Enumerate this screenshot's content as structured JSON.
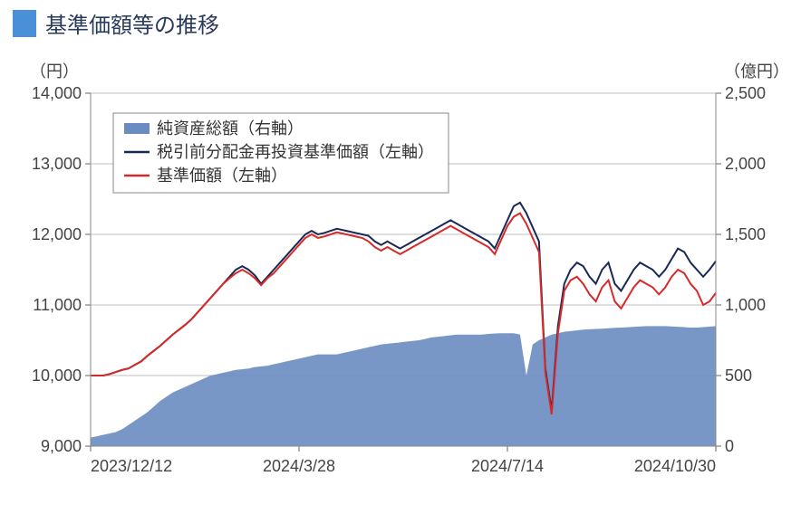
{
  "title": "基準価額等の推移",
  "chart": {
    "type": "combo-line-area",
    "left_axis_unit": "（円）",
    "right_axis_unit": "（億円）",
    "left_ylim": [
      9000,
      14000
    ],
    "left_ticks": [
      9000,
      10000,
      11000,
      12000,
      13000,
      14000
    ],
    "left_tick_labels": [
      "9,000",
      "10,000",
      "11,000",
      "12,000",
      "13,000",
      "14,000"
    ],
    "right_ylim": [
      0,
      2500
    ],
    "right_ticks": [
      0,
      500,
      1000,
      1500,
      2000,
      2500
    ],
    "right_tick_labels": [
      "0",
      "500",
      "1,000",
      "1,500",
      "2,000",
      "2,500"
    ],
    "x_dates": [
      "2023/12/12",
      "2024/3/28",
      "2024/7/14",
      "2024/10/30"
    ],
    "background_color": "#ffffff",
    "grid_color": "#bfbfbf",
    "plot_border_color": "#888888",
    "title_fontsize": 24,
    "tick_fontsize": 18,
    "legend": {
      "position": "top-left-inside",
      "items": [
        {
          "label": "純資産総額（右軸）",
          "type": "area",
          "color": "#6a8cc0"
        },
        {
          "label": "税引前分配金再投資基準価額（左軸）",
          "type": "line",
          "color": "#1a2855"
        },
        {
          "label": "基準価額（左軸）",
          "type": "line",
          "color": "#d62a2a"
        }
      ]
    },
    "series": {
      "net_assets": {
        "axis": "right",
        "type": "area",
        "color": "#6a8cc0",
        "fill_opacity": 0.9,
        "values": [
          60,
          70,
          80,
          90,
          100,
          120,
          150,
          180,
          210,
          240,
          280,
          320,
          350,
          380,
          400,
          420,
          440,
          460,
          480,
          500,
          510,
          520,
          530,
          540,
          545,
          550,
          560,
          565,
          570,
          580,
          590,
          600,
          610,
          620,
          630,
          640,
          650,
          650,
          650,
          650,
          660,
          670,
          680,
          690,
          700,
          710,
          720,
          725,
          730,
          735,
          740,
          745,
          750,
          760,
          770,
          775,
          780,
          785,
          790,
          790,
          790,
          790,
          790,
          795,
          798,
          800,
          800,
          800,
          790,
          500,
          720,
          750,
          770,
          790,
          800,
          810,
          815,
          820,
          825,
          828,
          830,
          832,
          835,
          838,
          840,
          842,
          845,
          848,
          850,
          850,
          850,
          850,
          848,
          845,
          843,
          840,
          840,
          843,
          847,
          850
        ]
      },
      "reinvest_nav": {
        "axis": "left",
        "type": "line",
        "color": "#1a2855",
        "line_width": 2,
        "values": [
          10000,
          10000,
          10000,
          10020,
          10050,
          10080,
          10100,
          10150,
          10200,
          10280,
          10350,
          10420,
          10500,
          10580,
          10650,
          10720,
          10800,
          10900,
          11000,
          11100,
          11200,
          11300,
          11400,
          11500,
          11550,
          11500,
          11420,
          11300,
          11400,
          11500,
          11600,
          11700,
          11800,
          11900,
          12000,
          12050,
          12000,
          12020,
          12050,
          12080,
          12060,
          12040,
          12020,
          12000,
          11980,
          11900,
          11850,
          11900,
          11850,
          11800,
          11850,
          11900,
          11950,
          12000,
          12050,
          12100,
          12150,
          12200,
          12150,
          12100,
          12050,
          12000,
          11950,
          11900,
          11800,
          12000,
          12200,
          12400,
          12450,
          12300,
          12100,
          11900,
          10100,
          9500,
          10700,
          11300,
          11500,
          11600,
          11550,
          11400,
          11300,
          11500,
          11600,
          11300,
          11200,
          11350,
          11500,
          11600,
          11550,
          11500,
          11400,
          11500,
          11650,
          11800,
          11750,
          11600,
          11500,
          11400,
          11500,
          11620
        ]
      },
      "nav": {
        "axis": "left",
        "type": "line",
        "color": "#d62a2a",
        "line_width": 2,
        "values": [
          10000,
          10000,
          10000,
          10020,
          10050,
          10080,
          10100,
          10150,
          10200,
          10280,
          10350,
          10420,
          10500,
          10580,
          10650,
          10720,
          10800,
          10900,
          11000,
          11100,
          11200,
          11300,
          11380,
          11450,
          11500,
          11450,
          11380,
          11280,
          11380,
          11450,
          11550,
          11650,
          11750,
          11850,
          11950,
          12000,
          11950,
          11970,
          12000,
          12030,
          12010,
          11990,
          11970,
          11950,
          11900,
          11820,
          11770,
          11820,
          11770,
          11720,
          11770,
          11820,
          11870,
          11920,
          11970,
          12020,
          12070,
          12120,
          12070,
          12020,
          11970,
          11920,
          11870,
          11820,
          11720,
          11920,
          12120,
          12250,
          12300,
          12150,
          11950,
          11750,
          10050,
          9450,
          10600,
          11200,
          11350,
          11400,
          11300,
          11150,
          11050,
          11250,
          11350,
          11050,
          10950,
          11100,
          11250,
          11350,
          11300,
          11250,
          11150,
          11250,
          11400,
          11500,
          11450,
          11300,
          11200,
          11000,
          11050,
          11170
        ]
      }
    }
  }
}
